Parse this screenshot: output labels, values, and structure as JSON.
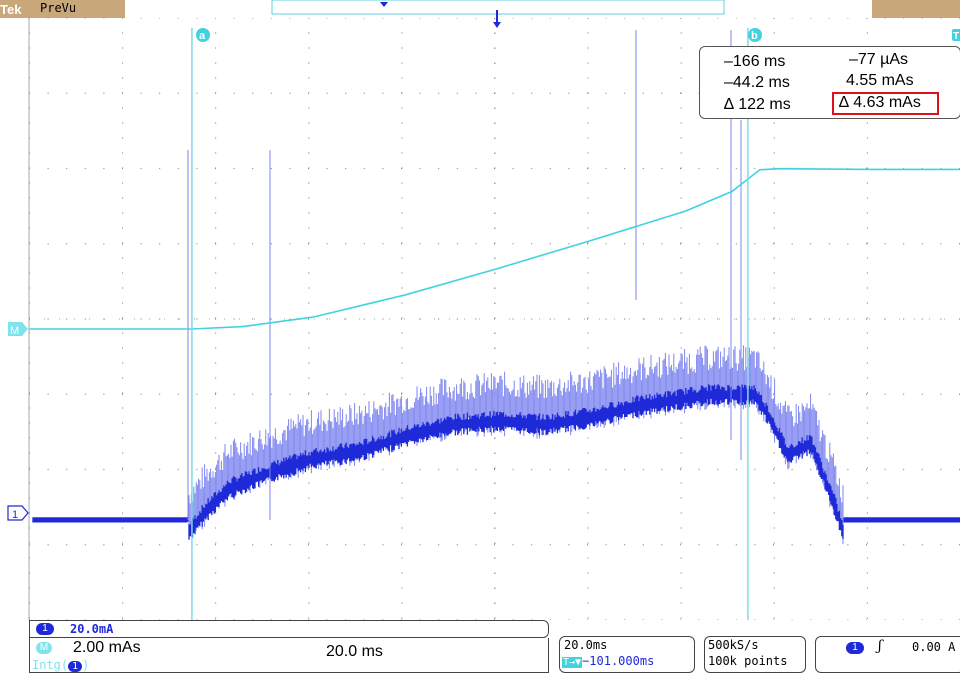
{
  "header": {
    "brand": "Tek",
    "mode": "PreVu"
  },
  "cursors": {
    "a_label": "a",
    "b_label": "b",
    "t_label": "T"
  },
  "readout": {
    "a_time": "–166 ms",
    "b_time": "–44.2 ms",
    "delta_time": "∆ 122 ms",
    "a_value": "–77 µAs",
    "b_value": "4.55 mAs",
    "delta_value": "∆ 4.63 mAs"
  },
  "markers": {
    "ch1": "1",
    "math": "M"
  },
  "status": {
    "ch1_badge": "1",
    "ch1_scale": "20.0mA",
    "math_badge": "M",
    "math_scale": "2.00 mAs",
    "math_time": "20.0 ms",
    "math_func": "Intg(",
    "math_func_arg": "1",
    "math_func_close": ")",
    "time_div": "20.0ms",
    "trigger_pos_icon": "T→▼",
    "trigger_pos": "−101.000ms",
    "sample_rate": "500kS/s",
    "record_length": "100k points",
    "trig_badge": "1",
    "trig_slope": "ʃ",
    "trig_level": "0.00 A"
  },
  "colors": {
    "ch1": "#1e2ad8",
    "ch1_light": "#7f86ee",
    "math": "#3fd3e0",
    "cursor": "#7fdbe6",
    "grid": "#8a8a8a",
    "highlight": "#e0101a"
  },
  "chart_data": {
    "type": "line",
    "title": "",
    "xlabel": "",
    "ylabel": "",
    "x_units": "ms",
    "xlim": [
      -201,
      -1
    ],
    "divisions": {
      "horizontal": 10,
      "vertical": 8
    },
    "series": [
      {
        "name": "1",
        "units": "mA",
        "description": "channel 1 current",
        "x": [
          -201,
          -170,
          -167,
          -163,
          -158,
          -150,
          -140,
          -130,
          -120,
          -110,
          -100,
          -90,
          -80,
          -70,
          -60,
          -55,
          -50,
          -45,
          -42,
          -38,
          -33,
          -28,
          -26,
          -1
        ],
        "y": [
          0,
          0,
          0,
          0.6,
          1.2,
          1.6,
          2.0,
          2.2,
          2.6,
          2.9,
          3.0,
          2.9,
          3.1,
          3.4,
          3.6,
          3.7,
          3.7,
          3.7,
          3.1,
          2.1,
          2.4,
          0.8,
          0,
          0
        ]
      },
      {
        "name": "M",
        "units": "mAs",
        "description": "Intg(1) integrated charge",
        "x": [
          -201,
          -166,
          -155,
          -140,
          -120,
          -100,
          -80,
          -60,
          -50,
          -44,
          -40,
          -20,
          -1
        ],
        "y": [
          0,
          0,
          0.07,
          0.34,
          0.98,
          1.74,
          2.54,
          3.37,
          3.93,
          4.55,
          4.58,
          4.56,
          4.56
        ]
      }
    ]
  }
}
